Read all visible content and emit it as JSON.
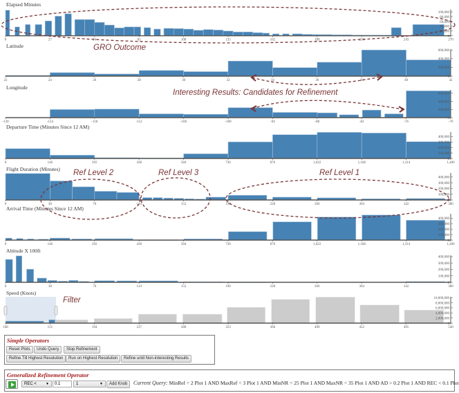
{
  "colors": {
    "bar": "#4682b4",
    "bar_inactive": "#cccccc",
    "annotation": "#7a3333",
    "brush": "#dfe8f2",
    "panel_title": "#a41c1c"
  },
  "annotations": {
    "gro_outcome": "GRO Outcome",
    "interesting": "Interesting Results: Candidates for Refinement",
    "ref_level_2": "Ref Level 2",
    "ref_level_3": "Ref Level 3",
    "ref_level_1": "Ref Level  1",
    "filter": "Filter"
  },
  "chart_data": [
    {
      "type": "bar",
      "title": "Elapsed Minutes",
      "xlim": [
        0,
        270
      ],
      "xticks": [
        "0",
        "27",
        "54",
        "81",
        "108",
        "135",
        "162",
        "189",
        "216",
        "243",
        "270"
      ],
      "yticks": [
        "100,000",
        "80,000",
        "60,000",
        "40,000",
        "20,000",
        "0"
      ],
      "ylim": [
        0,
        110000
      ],
      "bars": [
        [
          0,
          2.5,
          107000
        ],
        [
          5.7,
          8.5,
          37000
        ],
        [
          12,
          15,
          47000
        ],
        [
          18,
          22,
          47000
        ],
        [
          24,
          28,
          62000
        ],
        [
          30,
          34,
          82000
        ],
        [
          36,
          40,
          92000
        ],
        [
          42,
          48,
          68000
        ],
        [
          48,
          54,
          68000
        ],
        [
          54,
          60,
          56000
        ],
        [
          60,
          66,
          45000
        ],
        [
          66,
          72,
          33000
        ],
        [
          72,
          78,
          37000
        ],
        [
          78,
          82,
          37000
        ],
        [
          84,
          88,
          34000
        ],
        [
          90,
          94,
          28000
        ],
        [
          96,
          102,
          31000
        ],
        [
          102,
          108,
          30000
        ],
        [
          108,
          114,
          28000
        ],
        [
          114,
          120,
          23000
        ],
        [
          120,
          126,
          26000
        ],
        [
          126,
          132,
          24000
        ],
        [
          132,
          138,
          20000
        ],
        [
          138,
          144,
          16000
        ],
        [
          144,
          150,
          16000
        ],
        [
          150,
          156,
          13000
        ],
        [
          156,
          160,
          11000
        ],
        [
          162,
          166,
          8000
        ],
        [
          168,
          172,
          8000
        ],
        [
          174,
          180,
          8000
        ],
        [
          180,
          186,
          6000
        ],
        [
          186,
          192,
          5000
        ],
        [
          192,
          198,
          5000
        ],
        [
          198,
          204,
          4000
        ],
        [
          204,
          210,
          4000
        ],
        [
          210,
          216,
          3000
        ],
        [
          216,
          222,
          3000
        ],
        [
          222,
          228,
          3000
        ],
        [
          228,
          234,
          3000
        ],
        [
          234,
          240,
          34000
        ],
        [
          247,
          266,
          47000
        ]
      ]
    },
    {
      "type": "bar",
      "title": "Latitude",
      "xlim": [
        22,
        42
      ],
      "xticks": [
        "22",
        "24",
        "26",
        "28",
        "30",
        "32",
        "34",
        "36",
        "38",
        "40",
        "42"
      ],
      "yticks": [
        "600,000",
        "400,000",
        "200,000",
        "0"
      ],
      "ylim": [
        0,
        620000
      ],
      "bars": [
        [
          22,
          24,
          16000
        ],
        [
          24,
          26,
          80000
        ],
        [
          26,
          28,
          49000
        ],
        [
          28,
          30,
          130000
        ],
        [
          30,
          32,
          103000
        ],
        [
          32,
          34,
          346000
        ],
        [
          34,
          36,
          195000
        ],
        [
          36,
          38,
          319000
        ],
        [
          38,
          40,
          600000
        ],
        [
          40,
          42,
          373000
        ]
      ]
    },
    {
      "type": "bar",
      "title": "Longitude",
      "xlim": [
        -130,
        -70
      ],
      "xticks": [
        "-130",
        "-124",
        "-118",
        "-112",
        "-106",
        "-100",
        "-94",
        "-88",
        "-82",
        "-76",
        "-70"
      ],
      "yticks": [
        "600,000",
        "400,000",
        "200,000",
        "0"
      ],
      "ylim": [
        0,
        680000
      ],
      "bars": [
        [
          -124,
          -118,
          200000
        ],
        [
          -118,
          -112,
          210000
        ],
        [
          -112,
          -106,
          93000
        ],
        [
          -106,
          -100,
          82000
        ],
        [
          -100,
          -94,
          245000
        ],
        [
          -94,
          -88,
          128000
        ],
        [
          -88,
          -85.3,
          117000
        ],
        [
          -85,
          -82.4,
          70000
        ],
        [
          -81.9,
          -79.4,
          186000
        ],
        [
          -78.9,
          -76.4,
          93000
        ],
        [
          -76,
          -70,
          658000
        ]
      ]
    },
    {
      "type": "bar",
      "title": "Departure Time (Minutes Since 12 AM)",
      "xlim": [
        0,
        1460
      ],
      "xticks": [
        "0",
        "146",
        "292",
        "438",
        "584",
        "730",
        "876",
        "1,022",
        "1,168",
        "1,314",
        "1,460"
      ],
      "yticks": [
        "400,000",
        "300,000",
        "200,000",
        "100,000",
        "0"
      ],
      "ylim": [
        0,
        480000
      ],
      "bars": [
        [
          0,
          146,
          179000
        ],
        [
          146,
          292,
          60000
        ],
        [
          292,
          438,
          13000
        ],
        [
          438,
          584,
          8000
        ],
        [
          584,
          730,
          85000
        ],
        [
          730,
          876,
          302000
        ],
        [
          876,
          1022,
          434000
        ],
        [
          1022,
          1168,
          477000
        ],
        [
          1168,
          1314,
          464000
        ],
        [
          1314,
          1460,
          306000
        ]
      ]
    },
    {
      "type": "bar",
      "title": "Flight Duration (Minutes)",
      "xlim": [
        0,
        380
      ],
      "xticks": [
        "0",
        "38",
        "76",
        "114",
        "152",
        "190",
        "228",
        "266",
        "304",
        "342",
        "380"
      ],
      "yticks": [
        "400,000",
        "300,000",
        "200,000",
        "100,000",
        "0"
      ],
      "ylim": [
        0,
        470000
      ],
      "bars": [
        [
          0,
          38,
          461000
        ],
        [
          38,
          57,
          331000
        ],
        [
          57,
          76,
          229000
        ],
        [
          76,
          95,
          151000
        ],
        [
          95,
          114,
          131000
        ],
        [
          117,
          125,
          41000
        ],
        [
          126,
          134,
          41000
        ],
        [
          135,
          143,
          33000
        ],
        [
          144,
          152,
          29000
        ],
        [
          153,
          161,
          20000
        ],
        [
          162,
          170,
          16000
        ],
        [
          171,
          188,
          49000
        ],
        [
          190,
          223,
          82000
        ],
        [
          228,
          261,
          49000
        ],
        [
          266,
          299,
          37000
        ],
        [
          304,
          337,
          20000
        ],
        [
          342,
          375,
          25000
        ]
      ]
    },
    {
      "type": "bar",
      "title": "Arrival Time (Minutes Since 12 AM)",
      "xlim": [
        0,
        1460
      ],
      "xticks": [
        "0",
        "146",
        "292",
        "438",
        "584",
        "730",
        "876",
        "1,022",
        "1,168",
        "1,314",
        "1,460"
      ],
      "yticks": [
        "400,000",
        "300,000",
        "200,000",
        "100,000",
        "0"
      ],
      "ylim": [
        0,
        480000
      ],
      "bars": [
        [
          0,
          21,
          37000
        ],
        [
          36,
          57,
          29000
        ],
        [
          72,
          93,
          21000
        ],
        [
          108,
          140,
          17000
        ],
        [
          146,
          211,
          37000
        ],
        [
          218,
          282,
          21000
        ],
        [
          293,
          418,
          25000
        ],
        [
          438,
          565,
          4000
        ],
        [
          585,
          711,
          21000
        ],
        [
          731,
          857,
          154000
        ],
        [
          877,
          1003,
          333000
        ],
        [
          1023,
          1149,
          421000
        ],
        [
          1169,
          1295,
          458000
        ],
        [
          1314,
          1441,
          362000
        ]
      ]
    },
    {
      "type": "bar",
      "title": "Altitude X 100ft",
      "xlim": [
        0,
        380
      ],
      "xticks": [
        "0",
        "38",
        "76",
        "114",
        "152",
        "190",
        "228",
        "266",
        "304",
        "342",
        "380"
      ],
      "yticks": [
        "400,000",
        "300,000",
        "200,000",
        "100,000",
        "0"
      ],
      "ylim": [
        0,
        420000
      ],
      "bars": [
        [
          0,
          6,
          356000
        ],
        [
          9,
          14,
          411000
        ],
        [
          18,
          24,
          204000
        ],
        [
          27,
          35,
          65000
        ],
        [
          36,
          44,
          29000
        ],
        [
          45,
          53,
          18000
        ],
        [
          54,
          62,
          29000
        ],
        [
          63,
          71,
          15000
        ],
        [
          76,
          93,
          25000
        ],
        [
          95,
          112,
          22000
        ],
        [
          114,
          147,
          22000
        ],
        [
          152,
          185,
          7000
        ],
        [
          190,
          223,
          4000
        ],
        [
          342,
          375,
          11000
        ]
      ]
    },
    {
      "type": "bar",
      "title": "Speed (Knots)",
      "xlim": [
        108,
        540
      ],
      "xticks": [
        "108",
        "151",
        "194",
        "237",
        "280",
        "323",
        "366",
        "409",
        "452",
        "495",
        "540"
      ],
      "yticks": [
        "10,000,000",
        "8,000,000",
        "6,000,000",
        "4,000,000",
        "2,000,000",
        "0"
      ],
      "ylim": [
        0,
        10300000
      ],
      "filter_range": [
        108,
        157
      ],
      "bars": [
        [
          108,
          145,
          800000
        ],
        [
          150,
          156,
          1300000
        ]
      ],
      "inactive_bars": [
        [
          156,
          188,
          1300000
        ],
        [
          194,
          231,
          1800000
        ],
        [
          237,
          274,
          3500000
        ],
        [
          280,
          318,
          3500000
        ],
        [
          323,
          360,
          6200000
        ],
        [
          366,
          403,
          9300000
        ],
        [
          409,
          447,
          10200000
        ],
        [
          452,
          490,
          7100000
        ],
        [
          495,
          533,
          5100000
        ]
      ]
    }
  ],
  "simple_operators": {
    "title": "Simple Operators",
    "buttons": [
      "Reset Plots",
      "Undo Query",
      "Stop Refinement",
      "Refine Till Highest Resolution",
      "Run on Highest Resolution",
      "Refine until Non-interesting Results"
    ]
  },
  "generalized": {
    "title": "Generalized Refinement Operator",
    "metric_select": "REC <",
    "threshold_value": "0.1",
    "plot_select": "1",
    "add_knob": "Add Knob",
    "current_query_label": "Current Query:",
    "current_query": "MinRef = 2 Plot 1 AND MaxRef = 3 Plot 1 AND MinNR = 25 Plot 1 AND MaxNR = 35 Plot 1 AND AD > 0.2 Plot 1 AND REC < 0.1 Plot 1"
  }
}
